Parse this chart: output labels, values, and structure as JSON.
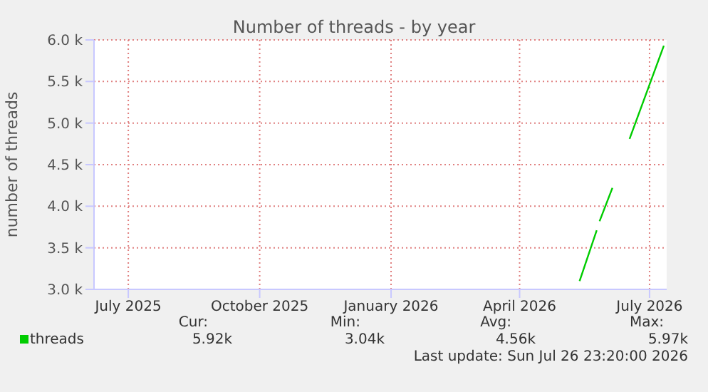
{
  "chart_data": {
    "type": "line",
    "title": "Number of threads - by year",
    "ylabel": "number of threads",
    "x": [
      "2026-05-27",
      "2026-06-08",
      "2026-06-09",
      "2026-06-10",
      "2026-06-19",
      "2026-06-20",
      "2026-07-01",
      "2026-07-25"
    ],
    "series": [
      {
        "name": "threads",
        "color": "#00cc00",
        "values": [
          3100,
          3710,
          null,
          3820,
          4220,
          null,
          4810,
          5930
        ]
      }
    ],
    "xlim": [
      "2025-06-21",
      "2026-07-27"
    ],
    "xticks": [
      {
        "value": "2025-07-15",
        "label": "July 2025"
      },
      {
        "value": "2025-10-15",
        "label": "October 2025"
      },
      {
        "value": "2026-01-15",
        "label": "January 2026"
      },
      {
        "value": "2026-04-15",
        "label": "April 2026"
      },
      {
        "value": "2026-07-15",
        "label": "July 2026"
      }
    ],
    "ylim": [
      3000,
      6000
    ],
    "yticks": [
      {
        "value": 3000,
        "label": "3.0 k"
      },
      {
        "value": 3500,
        "label": "3.5 k"
      },
      {
        "value": 4000,
        "label": "4.0 k"
      },
      {
        "value": 4500,
        "label": "4.5 k"
      },
      {
        "value": 5000,
        "label": "5.0 k"
      },
      {
        "value": 5500,
        "label": "5.5 k"
      },
      {
        "value": 6000,
        "label": "6.0 k"
      }
    ],
    "grid": true,
    "legend": "bottom left",
    "marker": "none",
    "line_style": "solid",
    "annotations": [
      "Cur:",
      "Min:",
      "Avg:",
      "Max:",
      "5.92k",
      "3.04k",
      "4.56k",
      "5.97k",
      "Last update: Sun Jul 26 23:20:00 2026"
    ]
  }
}
